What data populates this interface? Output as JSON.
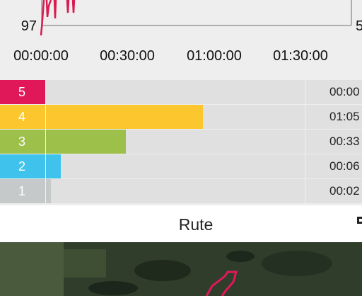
{
  "heart_rate_chart": {
    "y_left_label": "97",
    "y_right_label": "5",
    "x_labels": [
      "00:00:00",
      "00:30:00",
      "01:00:00",
      "01:30:00"
    ]
  },
  "zones": [
    {
      "label": "5",
      "time": "00:00"
    },
    {
      "label": "4",
      "time": "01:05"
    },
    {
      "label": "3",
      "time": "00:33"
    },
    {
      "label": "2",
      "time": "00:06"
    },
    {
      "label": "1",
      "time": "00:02"
    }
  ],
  "route": {
    "title": "Rute"
  }
}
